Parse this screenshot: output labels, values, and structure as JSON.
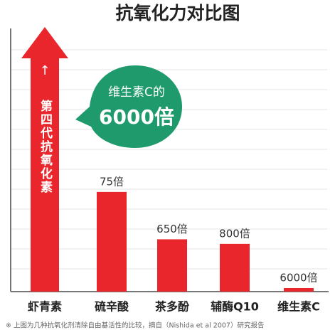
{
  "chart_data": {
    "type": "bar",
    "title": "抗氧化力对比图",
    "categories": [
      "虾青素",
      "硫辛酸",
      "茶多酚",
      "辅酶Q10",
      "维生素C"
    ],
    "values": [
      null,
      75,
      650,
      800,
      6000
    ],
    "value_labels": [
      null,
      "75倍",
      "650倍",
      "800倍",
      "6000倍"
    ],
    "color": "#e8262b",
    "arrow_label": "第四代抗氧化素",
    "callout": [
      "维生素C的",
      "6000倍"
    ],
    "callout_color": "#1e9a6c",
    "footnote": "※ 上图为几种抗氧化剂清除自由基活性的比较，摘自（Nishida et al 2007）研究报告"
  }
}
